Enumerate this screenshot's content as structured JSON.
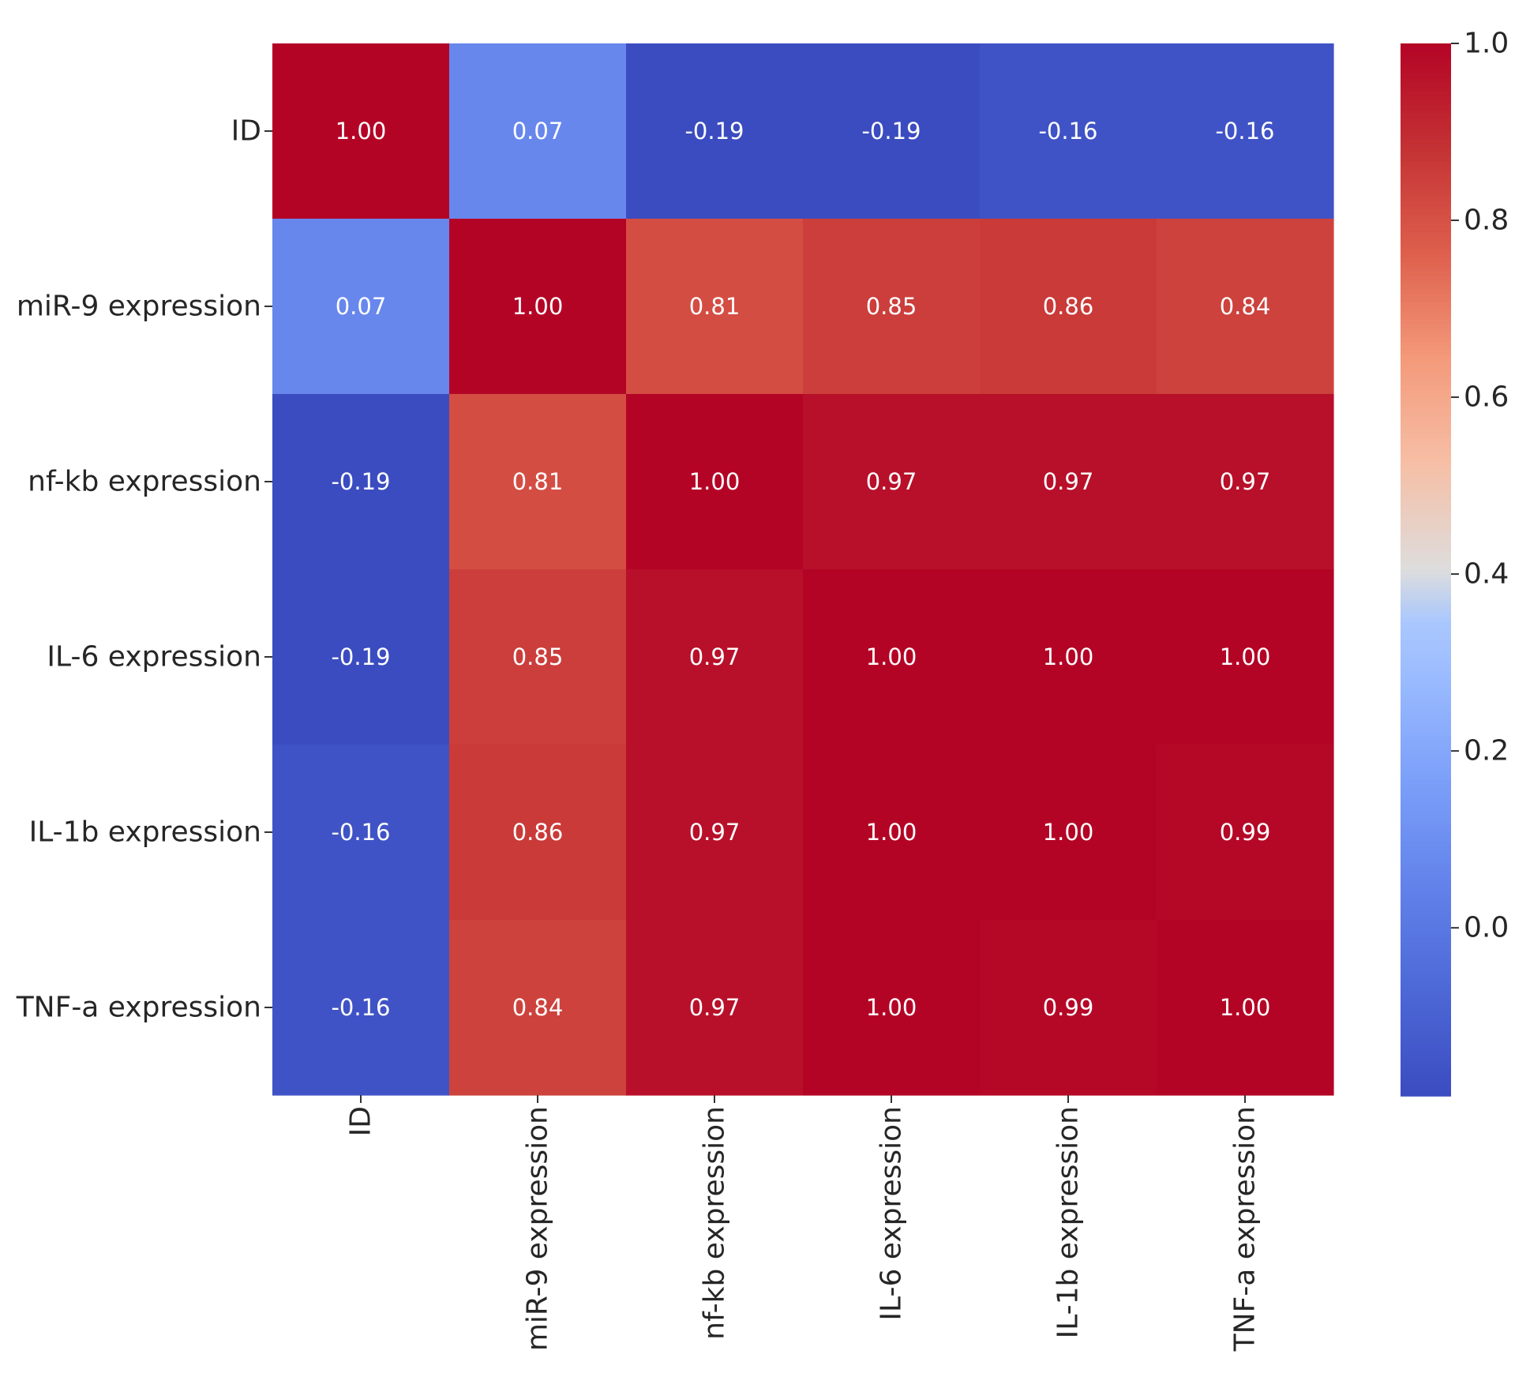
{
  "chart_data": {
    "type": "heatmap",
    "title": "",
    "xlabel": "",
    "ylabel": "",
    "rows": [
      "ID",
      "miR-9 expression",
      "nf-kb expression",
      "IL-6 expression",
      "IL-1b expression",
      "TNF-a expression"
    ],
    "columns": [
      "ID",
      "miR-9 expression",
      "nf-kb expression",
      "IL-6 expression",
      "IL-1b expression",
      "TNF-a expression"
    ],
    "values": [
      [
        1.0,
        0.07,
        -0.19,
        -0.19,
        -0.16,
        -0.16
      ],
      [
        0.07,
        1.0,
        0.81,
        0.85,
        0.86,
        0.84
      ],
      [
        -0.19,
        0.81,
        1.0,
        0.97,
        0.97,
        0.97
      ],
      [
        -0.19,
        0.85,
        0.97,
        1.0,
        1.0,
        1.0
      ],
      [
        -0.16,
        0.86,
        0.97,
        1.0,
        1.0,
        0.99
      ],
      [
        -0.16,
        0.84,
        0.97,
        1.0,
        0.99,
        1.0
      ]
    ],
    "value_format": "2 decimals",
    "colormap": "coolwarm",
    "colorbar": {
      "range": [
        -0.19,
        1.0
      ],
      "ticks": [
        0.0,
        0.2,
        0.4,
        0.6,
        0.8,
        1.0
      ],
      "tick_labels": [
        "0.0",
        "0.2",
        "0.4",
        "0.6",
        "0.8",
        "1.0"
      ]
    },
    "grid": false,
    "legend": "colorbar-right"
  }
}
